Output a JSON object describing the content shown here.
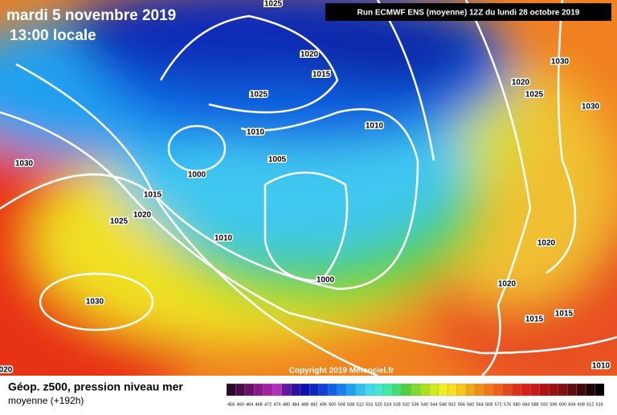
{
  "header": {
    "title": "mardi 5 novembre 2019",
    "subtitle": "13:00 locale",
    "run": "Run ECMWF ENS (moyenne) 12Z du lundi 28 octobre 2019"
  },
  "copyright": "Copyright 2019 Meteociel.fr",
  "footer": {
    "title": "Géop. z500, pression niveau mer",
    "subtitle": "moyenne  (+192h)"
  },
  "isobar_labels": [
    "1025",
    "1020",
    "1015",
    "1025",
    "1010",
    "1010",
    "1005",
    "1000",
    "1030",
    "1015",
    "1020",
    "1025",
    "1010",
    "1000",
    "1030",
    "1030",
    "1020",
    "1025",
    "1030",
    "1020",
    "1020",
    "1015",
    "1015",
    "1010",
    "020"
  ],
  "colorbar": {
    "labels": [
      456,
      460,
      464,
      468,
      472,
      476,
      480,
      484,
      488,
      492,
      496,
      500,
      504,
      508,
      512,
      516,
      520,
      524,
      528,
      532,
      536,
      540,
      544,
      548,
      552,
      556,
      560,
      564,
      568,
      572,
      576,
      580,
      584,
      588,
      592,
      596,
      600,
      604,
      608,
      612,
      616
    ]
  }
}
